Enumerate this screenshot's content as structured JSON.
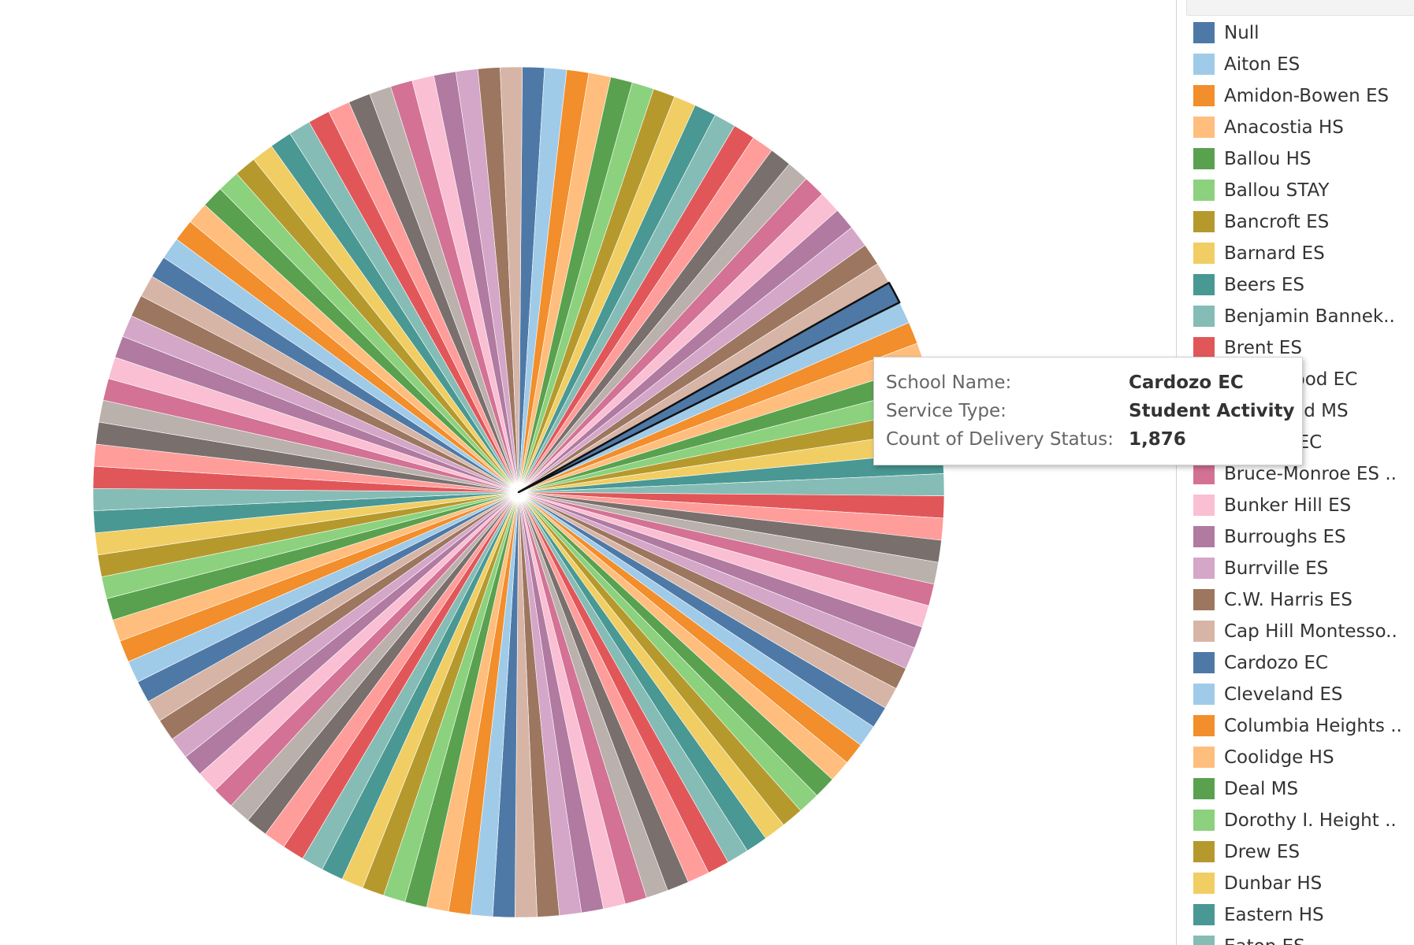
{
  "chart_data": {
    "type": "pie",
    "highlighted": "Cardozo EC",
    "colors": [
      "#4e79a7",
      "#a0cbe8",
      "#f28e2b",
      "#ffbe7d",
      "#59a14f",
      "#8cd17d",
      "#b6992d",
      "#f1ce63",
      "#499894",
      "#86bcb6",
      "#e15759",
      "#ff9d9a",
      "#79706e",
      "#bab0ac",
      "#d37295",
      "#fabfd2",
      "#b07aa1",
      "#d4a6c8",
      "#9d7660",
      "#d7b5a6"
    ],
    "legend": [
      "Null",
      "Aiton ES",
      "Amidon-Bowen ES",
      "Anacostia HS",
      "Ballou HS",
      "Ballou STAY",
      "Bancroft ES",
      "Barnard ES",
      "Beers ES",
      "Benjamin Bannek..",
      "Brent ES",
      "Brightwood EC",
      "Brookland MS",
      "Browne EC",
      "Bruce-Monroe ES ..",
      "Bunker Hill ES",
      "Burroughs ES",
      "Burrville ES",
      "C.W. Harris ES",
      "Cap Hill Montesso..",
      "Cardozo EC",
      "Cleveland ES",
      "Columbia Heights ..",
      "Coolidge HS",
      "Deal MS",
      "Dorothy I. Height ..",
      "Drew ES",
      "Dunbar HS",
      "Eastern HS",
      "Eaton ES"
    ]
  },
  "tooltip": {
    "rows": [
      {
        "label": "School Name:",
        "value": "Cardozo EC"
      },
      {
        "label": "Service Type:",
        "value": "Student Activity"
      },
      {
        "label": "Count of Delivery Status:",
        "value": "1,876"
      }
    ]
  }
}
